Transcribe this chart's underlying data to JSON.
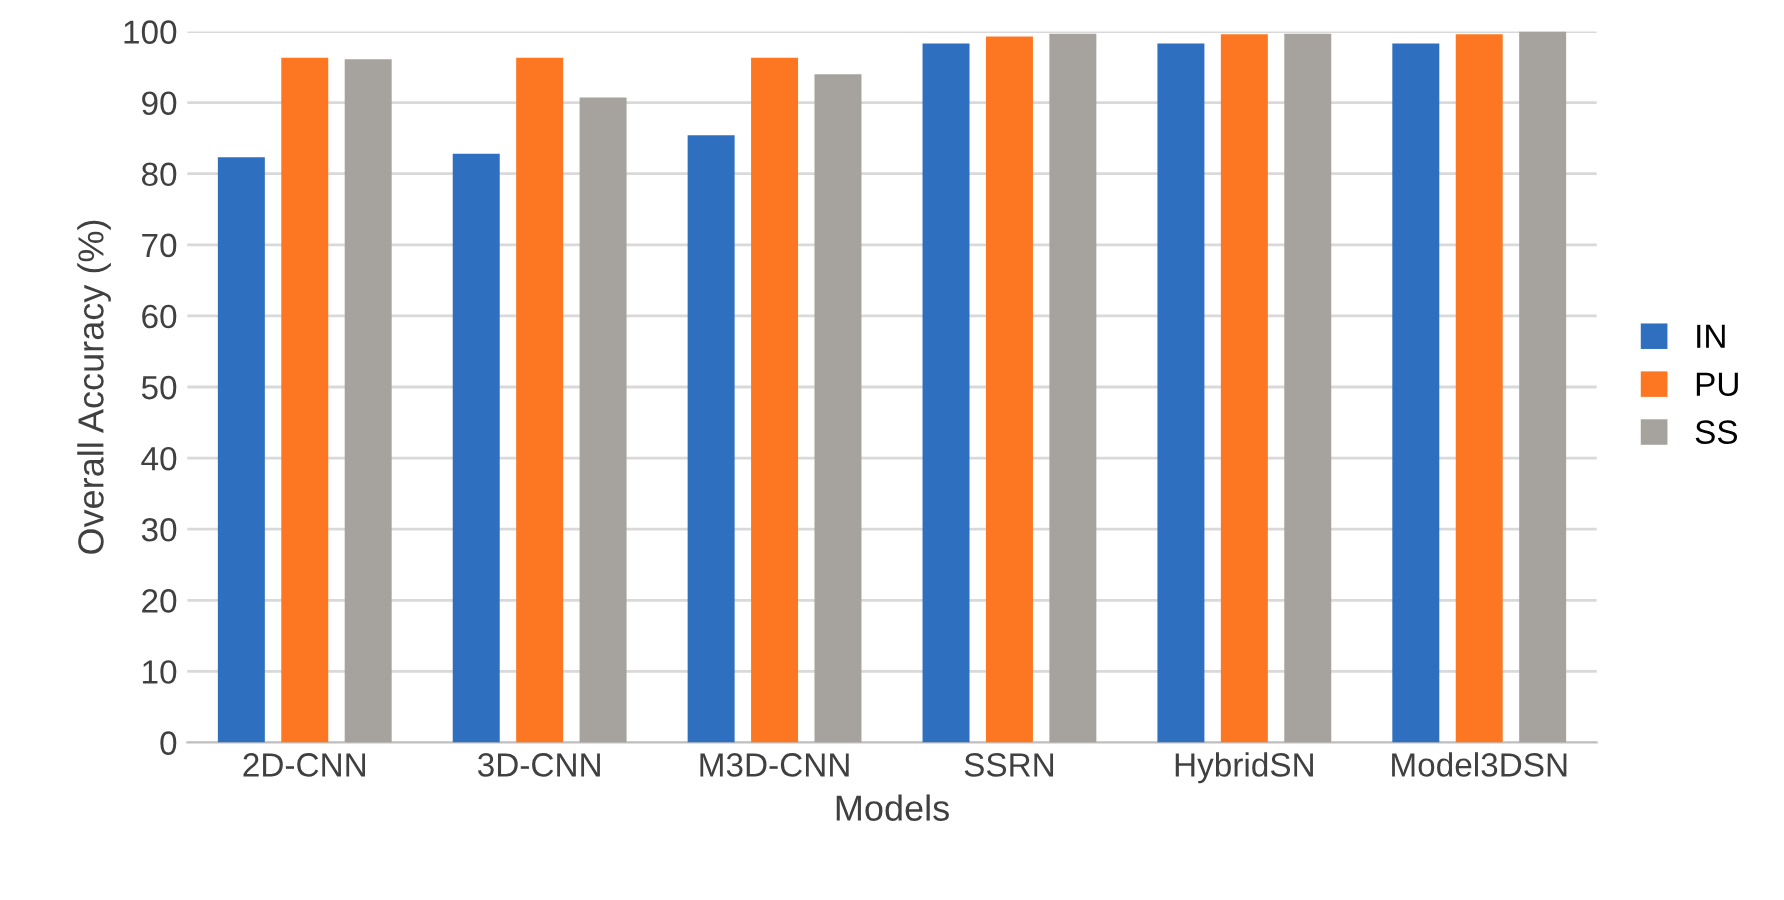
{
  "chart_data": {
    "type": "bar",
    "xlabel": "Models",
    "ylabel": "Overall Accuracy (%)",
    "categories": [
      "2D-CNN",
      "3D-CNN",
      "M3D-CNN",
      "SSRN",
      "HybridSN",
      "Model3DSN"
    ],
    "series": [
      {
        "name": "IN",
        "color": "#2e6fbf",
        "values": [
          82.3,
          82.8,
          85.4,
          98.3,
          98.3,
          98.3
        ]
      },
      {
        "name": "PU",
        "color": "#fd7722",
        "values": [
          96.3,
          96.3,
          96.3,
          99.3,
          99.6,
          99.6
        ]
      },
      {
        "name": "SS",
        "color": "#a6a39e",
        "values": [
          96.1,
          90.7,
          94.0,
          99.7,
          99.7,
          100
        ]
      }
    ],
    "ylim": [
      0,
      100
    ],
    "yticks": [
      0,
      10,
      20,
      30,
      40,
      50,
      60,
      70,
      80,
      90,
      100
    ],
    "grid": "y",
    "legend": "right"
  }
}
